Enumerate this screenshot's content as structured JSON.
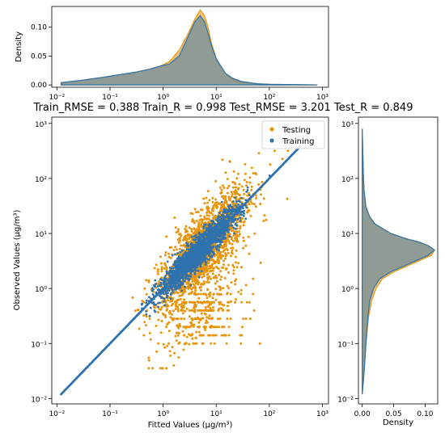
{
  "chart_data": {
    "type": "scatter",
    "title": "Train_RMSE = 0.388 Train_R = 0.998 Test_RMSE = 3.201 Test_R = 0.849",
    "xlabel": "Fitted Values (μg/m³)",
    "ylabel": "Observed Values (μg/m³)",
    "xscale": "log",
    "yscale": "log",
    "xlim": [
      0.008,
      1300
    ],
    "ylim": [
      0.008,
      1300
    ],
    "x_ticks": [
      "10⁻²",
      "10⁻¹",
      "10⁰",
      "10¹",
      "10²",
      "10³"
    ],
    "y_ticks": [
      "10⁻²",
      "10⁻¹",
      "10⁰",
      "10¹",
      "10²",
      "10³"
    ],
    "legend": {
      "position": "top-right",
      "entries": [
        {
          "name": "Testing",
          "color": "#e8950c"
        },
        {
          "name": "Training",
          "color": "#2e72ae"
        }
      ]
    },
    "series": [
      {
        "name": "Testing",
        "color": "#e8950c",
        "points_note": "dense cloud roughly 0.1–300 on both axes, scattered above and below the 1:1 line"
      },
      {
        "name": "Training",
        "color": "#2e72ae",
        "points_note": "points tightly along the 1:1 line from 0.012 to 380"
      }
    ],
    "top_marginal": {
      "type": "density",
      "ylabel": "Density",
      "y_ticks": [
        "0.00",
        "0.05",
        "0.10"
      ],
      "ylim": [
        -0.004,
        0.136
      ],
      "x": [
        0.012,
        0.03,
        0.1,
        0.3,
        0.6,
        0.9,
        1.3,
        2,
        3,
        4,
        5,
        6,
        7,
        8,
        10,
        15,
        20,
        30,
        60,
        100,
        800
      ],
      "testing": [
        0.004,
        0.008,
        0.015,
        0.022,
        0.028,
        0.033,
        0.04,
        0.06,
        0.09,
        0.115,
        0.13,
        0.12,
        0.1,
        0.075,
        0.045,
        0.02,
        0.01,
        0.005,
        0.002,
        0.001,
        0.0
      ],
      "training": [
        0.004,
        0.008,
        0.015,
        0.022,
        0.028,
        0.033,
        0.036,
        0.05,
        0.085,
        0.11,
        0.12,
        0.11,
        0.09,
        0.07,
        0.045,
        0.02,
        0.012,
        0.006,
        0.002,
        0.001,
        0.0
      ]
    },
    "right_marginal": {
      "type": "density",
      "xlabel": "Density",
      "x_ticks": [
        "0.00",
        "0.05",
        "0.10"
      ],
      "xlim": [
        -0.006,
        0.12
      ],
      "y": [
        0.012,
        0.03,
        0.1,
        0.3,
        0.6,
        1,
        1.5,
        2,
        3,
        4,
        5,
        6,
        7,
        8,
        10,
        15,
        20,
        30,
        60,
        100,
        300,
        800
      ],
      "testing": [
        0.0,
        0.003,
        0.006,
        0.01,
        0.015,
        0.022,
        0.032,
        0.05,
        0.085,
        0.11,
        0.115,
        0.105,
        0.09,
        0.07,
        0.045,
        0.02,
        0.012,
        0.006,
        0.003,
        0.002,
        0.001,
        0.0
      ],
      "training": [
        0.0,
        0.003,
        0.006,
        0.009,
        0.012,
        0.018,
        0.028,
        0.045,
        0.08,
        0.105,
        0.115,
        0.105,
        0.09,
        0.07,
        0.045,
        0.02,
        0.012,
        0.006,
        0.003,
        0.002,
        0.001,
        0.0
      ]
    }
  }
}
